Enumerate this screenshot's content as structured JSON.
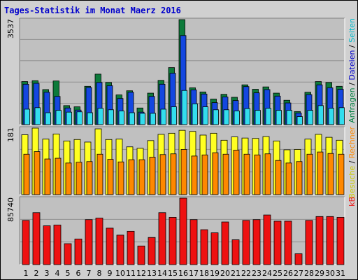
{
  "title": "Tages-Statistik im Monat Maerz 2016",
  "colors": {
    "hits": "#0c7a3a",
    "files": "#1447e0",
    "pages": "#33ddee",
    "visits": "#ffff22",
    "sites": "#ff8800",
    "kbytes": "#ee1111",
    "weekend_label": "#008040",
    "panel_bg": "#c0c0c0"
  },
  "right_labels": {
    "top": [
      {
        "text": "Anfragen",
        "color": "#008040"
      },
      {
        "text": " / ",
        "color": "#000000"
      },
      {
        "text": "Dateien",
        "color": "#0000cc"
      },
      {
        "text": " / ",
        "color": "#000000"
      },
      {
        "text": "Seiten",
        "color": "#00bbcc"
      }
    ],
    "middle": [
      {
        "text": "Besuche",
        "color": "#cccc00"
      },
      {
        "text": " / ",
        "color": "#000000"
      },
      {
        "text": "Rechner",
        "color": "#ff8800"
      }
    ],
    "bottom": [
      {
        "text": "kB",
        "color": "#ee1111"
      }
    ]
  },
  "chart_data": [
    {
      "type": "bar",
      "panel": "top",
      "ymax_label": "3537",
      "ylim": [
        0,
        3537
      ],
      "categories": [
        "1",
        "2",
        "3",
        "4",
        "5",
        "6",
        "7",
        "8",
        "9",
        "10",
        "11",
        "12",
        "13",
        "14",
        "15",
        "16",
        "17",
        "18",
        "19",
        "20",
        "21",
        "22",
        "23",
        "24",
        "25",
        "26",
        "27",
        "28",
        "29",
        "30",
        "31"
      ],
      "weekend_days": [
        "5",
        "6",
        "12",
        "13",
        "19",
        "20",
        "26",
        "27"
      ],
      "series": [
        {
          "name": "Anfragen",
          "values": [
            1450,
            1480,
            1180,
            1470,
            640,
            600,
            1290,
            1700,
            1420,
            1000,
            1140,
            560,
            1060,
            1490,
            1920,
            3537,
            1240,
            1100,
            860,
            1020,
            920,
            1340,
            1190,
            1270,
            1060,
            820,
            440,
            1090,
            1450,
            1420,
            1290
          ]
        },
        {
          "name": "Dateien",
          "values": [
            1360,
            1390,
            1090,
            950,
            560,
            490,
            1250,
            1420,
            1310,
            880,
            1090,
            420,
            950,
            1360,
            1730,
            3000,
            1170,
            1030,
            740,
            930,
            810,
            1280,
            1070,
            1180,
            960,
            730,
            390,
            1010,
            1340,
            1240,
            1190
          ]
        },
        {
          "name": "Seiten",
          "values": [
            520,
            570,
            400,
            480,
            420,
            430,
            400,
            550,
            500,
            460,
            400,
            380,
            380,
            520,
            600,
            1150,
            700,
            600,
            500,
            500,
            460,
            540,
            480,
            550,
            480,
            480,
            270,
            480,
            640,
            550,
            570
          ]
        }
      ]
    },
    {
      "type": "bar",
      "panel": "middle",
      "ymax_label": "181",
      "ylim": [
        0,
        181
      ],
      "categories": [
        "1",
        "2",
        "3",
        "4",
        "5",
        "6",
        "7",
        "8",
        "9",
        "10",
        "11",
        "12",
        "13",
        "14",
        "15",
        "16",
        "17",
        "18",
        "19",
        "20",
        "21",
        "22",
        "23",
        "24",
        "25",
        "26",
        "27",
        "28",
        "29",
        "30",
        "31"
      ],
      "series": [
        {
          "name": "Besuche",
          "values": [
            163,
            181,
            151,
            165,
            146,
            150,
            143,
            179,
            150,
            151,
            130,
            126,
            147,
            164,
            167,
            175,
            172,
            162,
            167,
            148,
            157,
            154,
            153,
            158,
            146,
            122,
            123,
            151,
            164,
            156,
            148
          ]
        },
        {
          "name": "Rechner",
          "values": [
            110,
            117,
            97,
            99,
            86,
            88,
            90,
            110,
            96,
            89,
            95,
            95,
            102,
            109,
            111,
            123,
            105,
            108,
            114,
            110,
            121,
            110,
            108,
            111,
            93,
            86,
            90,
            110,
            116,
            112,
            110
          ]
        }
      ]
    },
    {
      "type": "bar",
      "panel": "bottom",
      "ymax_label": "85740",
      "ylim": [
        0,
        85740
      ],
      "categories": [
        "1",
        "2",
        "3",
        "4",
        "5",
        "6",
        "7",
        "8",
        "9",
        "10",
        "11",
        "12",
        "13",
        "14",
        "15",
        "16",
        "17",
        "18",
        "19",
        "20",
        "21",
        "22",
        "23",
        "24",
        "25",
        "26",
        "27",
        "28",
        "29",
        "30",
        "31"
      ],
      "series": [
        {
          "name": "kB",
          "values": [
            57000,
            67000,
            50000,
            51000,
            27000,
            33000,
            58000,
            60000,
            47000,
            38000,
            43000,
            24000,
            35000,
            67000,
            61000,
            85740,
            58000,
            45000,
            41000,
            55000,
            32000,
            57000,
            58000,
            64000,
            56000,
            56000,
            14000,
            57000,
            62000,
            62000,
            61000
          ]
        }
      ]
    }
  ]
}
